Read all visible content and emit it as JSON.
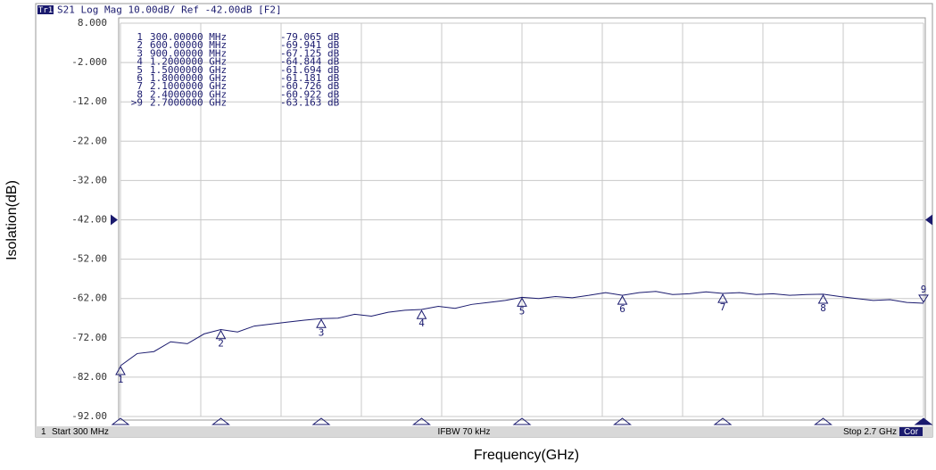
{
  "chart_data": {
    "type": "line",
    "header": "S21 Log Mag 10.00dB/ Ref -42.00dB [F2]",
    "trace_name": "Tr1",
    "ylabel": "Isolation(dB)",
    "xlabel": "Frequency(GHz)",
    "footer": {
      "channel": "1",
      "start": "Start 300 MHz",
      "ifbw": "IFBW 70 kHz",
      "stop": "Stop 2.7 GHz",
      "cor": "Cor"
    },
    "xlim": [
      0.3,
      2.7
    ],
    "xticks": [
      0.3,
      0.54,
      0.78,
      1.02,
      1.26,
      1.5,
      1.74,
      1.98,
      2.22,
      2.46,
      2.7
    ],
    "ylim": [
      -92,
      8
    ],
    "yticks": [
      {
        "value": 8,
        "label": "8.000"
      },
      {
        "value": -2,
        "label": "-2.000"
      },
      {
        "value": -12,
        "label": "-12.00"
      },
      {
        "value": -22,
        "label": "-22.00"
      },
      {
        "value": -32,
        "label": "-32.00"
      },
      {
        "value": -42,
        "label": "-42.00"
      },
      {
        "value": -52,
        "label": "-52.00"
      },
      {
        "value": -62,
        "label": "-62.00"
      },
      {
        "value": -72,
        "label": "-72.00"
      },
      {
        "value": -82,
        "label": "-82.00"
      },
      {
        "value": -92,
        "label": "-92.00"
      }
    ],
    "ref": -42,
    "grid": true,
    "x": [
      0.3,
      0.35,
      0.4,
      0.45,
      0.5,
      0.55,
      0.6,
      0.65,
      0.7,
      0.75,
      0.8,
      0.85,
      0.9,
      0.95,
      1.0,
      1.05,
      1.1,
      1.15,
      1.2,
      1.25,
      1.3,
      1.35,
      1.4,
      1.45,
      1.5,
      1.55,
      1.6,
      1.65,
      1.7,
      1.75,
      1.8,
      1.85,
      1.9,
      1.95,
      2.0,
      2.05,
      2.1,
      2.15,
      2.2,
      2.25,
      2.3,
      2.35,
      2.4,
      2.45,
      2.5,
      2.55,
      2.6,
      2.65,
      2.7
    ],
    "series": [
      {
        "name": "S21",
        "color": "#1a1a6e",
        "values": [
          -79.1,
          -76,
          -75.5,
          -73,
          -73.5,
          -71,
          -69.9,
          -70.5,
          -69,
          -68.5,
          -68,
          -67.5,
          -67.1,
          -67,
          -66,
          -66.5,
          -65.5,
          -65,
          -64.8,
          -64,
          -64.5,
          -63.5,
          -63,
          -62.5,
          -61.7,
          -62,
          -61.5,
          -61.8,
          -61.2,
          -60.5,
          -61.2,
          -60.5,
          -60.2,
          -61,
          -60.8,
          -60.3,
          -60.7,
          -60.5,
          -61,
          -60.8,
          -61.2,
          -61,
          -60.9,
          -61.5,
          -62,
          -62.5,
          -62.3,
          -63,
          -63.2
        ]
      }
    ],
    "markers": {
      "names": [
        "1",
        "2",
        "3",
        "4",
        "5",
        "6",
        "7",
        "8",
        ">9"
      ],
      "plot_labels": [
        "1",
        "2",
        "3",
        "4",
        "5",
        "6",
        "7",
        "8",
        "9"
      ],
      "x": [
        0.3,
        0.6,
        0.9,
        1.2,
        1.5,
        1.8,
        2.1,
        2.4,
        2.7
      ],
      "x_labels": [
        "300.00000 MHz",
        "600.00000 MHz",
        "900.00000 MHz",
        "1.2000000 GHz",
        "1.5000000 GHz",
        "1.8000000 GHz",
        "2.1000000 GHz",
        "2.4000000 GHz",
        "2.7000000 GHz"
      ],
      "values": [
        -79.065,
        -69.941,
        -67.125,
        -64.844,
        -61.694,
        -61.181,
        -60.726,
        -60.922,
        -63.163
      ],
      "value_labels": [
        "-79.065 dB",
        "-69.941 dB",
        "-67.125 dB",
        "-64.844 dB",
        "-61.694 dB",
        "-61.181 dB",
        "-60.726 dB",
        "-60.922 dB",
        "-63.163 dB"
      ]
    }
  }
}
